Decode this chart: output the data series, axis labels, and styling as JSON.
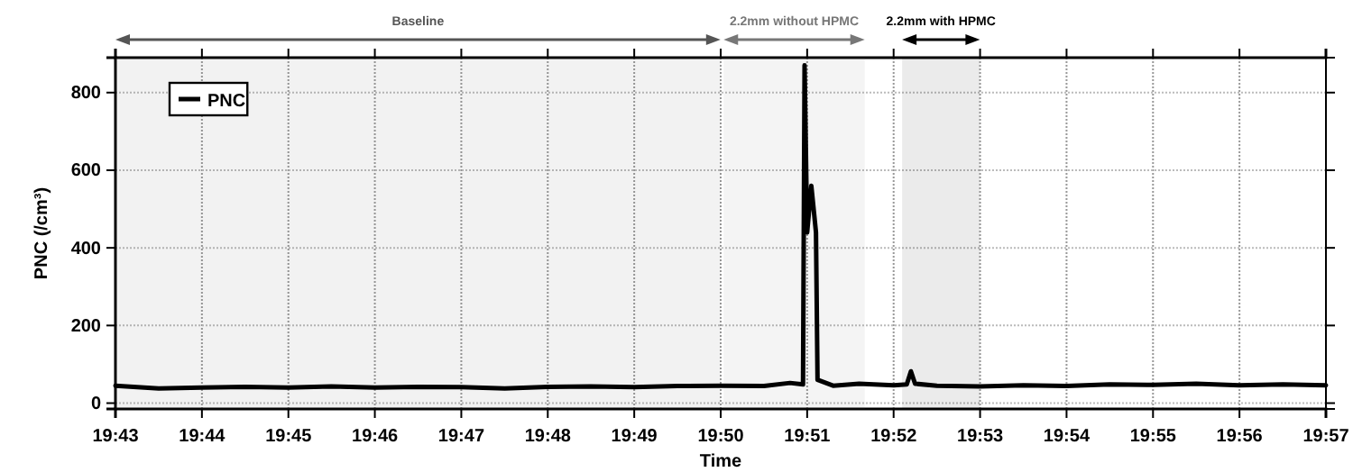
{
  "chart_data": {
    "type": "line",
    "xlabel": "Time",
    "ylabel": "PNC (/cm³)",
    "x": [
      19.716667,
      19.725,
      19.7333,
      19.7417,
      19.75,
      19.7583,
      19.7667,
      19.775,
      19.7833,
      19.7917,
      19.8,
      19.8083,
      19.8167,
      19.825,
      19.8333,
      19.8417,
      19.8467,
      19.8492,
      19.8495,
      19.85,
      19.8508,
      19.8517,
      19.852,
      19.855,
      19.86,
      19.8667,
      19.8692,
      19.87,
      19.8708,
      19.875,
      19.8833,
      19.8917,
      19.9,
      19.9083,
      19.9167,
      19.925,
      19.9333,
      19.9417,
      19.95
    ],
    "series": [
      {
        "name": "PNC",
        "color": "#000000",
        "values": [
          45,
          38,
          40,
          42,
          40,
          43,
          40,
          42,
          41,
          38,
          42,
          43,
          41,
          44,
          45,
          44,
          52,
          48,
          870,
          440,
          560,
          440,
          60,
          45,
          50,
          46,
          48,
          82,
          50,
          45,
          43,
          46,
          44,
          48,
          47,
          50,
          46,
          48,
          46
        ]
      }
    ],
    "xlim": [
      19.716667,
      19.95
    ],
    "xticks": [
      {
        "value": 19.716667,
        "label": "19:43"
      },
      {
        "value": 19.733333,
        "label": "19:44"
      },
      {
        "value": 19.75,
        "label": "19:45"
      },
      {
        "value": 19.766667,
        "label": "19:46"
      },
      {
        "value": 19.783333,
        "label": "19:47"
      },
      {
        "value": 19.8,
        "label": "19:48"
      },
      {
        "value": 19.816667,
        "label": "19:49"
      },
      {
        "value": 19.833333,
        "label": "19:50"
      },
      {
        "value": 19.85,
        "label": "19:51"
      },
      {
        "value": 19.866667,
        "label": "19:52"
      },
      {
        "value": 19.883333,
        "label": "19:53"
      },
      {
        "value": 19.9,
        "label": "19:54"
      },
      {
        "value": 19.916667,
        "label": "19:55"
      },
      {
        "value": 19.933333,
        "label": "19:56"
      },
      {
        "value": 19.95,
        "label": "19:57"
      }
    ],
    "ylim": [
      -15,
      890
    ],
    "yticks": [
      0,
      200,
      400,
      600,
      800
    ],
    "bands": [
      {
        "axis": "x",
        "from": 19.716667,
        "to": 19.8333,
        "label": "Baseline",
        "color": "#555555"
      },
      {
        "axis": "x",
        "from": 19.8339,
        "to": 19.8611,
        "label": "2.2mm without HPMC",
        "color": "#777777"
      },
      {
        "axis": "x",
        "from": 19.8683,
        "to": 19.8833,
        "label": "2.2mm with HPMC",
        "color": "#000000"
      }
    ],
    "grid": true,
    "legend": "top left",
    "line_style": "solid",
    "marker": "none"
  }
}
